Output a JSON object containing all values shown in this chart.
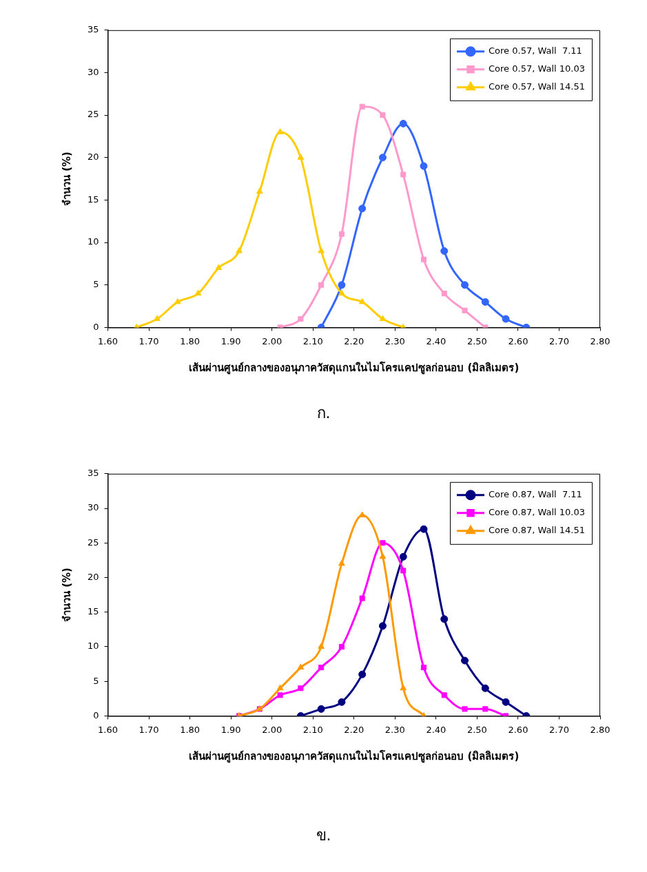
{
  "chart_data": [
    {
      "type": "line",
      "xlabel": "เส้นผ่านศูนย์กลางของอนุภาควัสดุแกนในไมโครแคปซูลก่อนอบ (มิลลิเมตร)",
      "ylabel": "จำนวน (%)",
      "xlim": [
        1.6,
        2.8
      ],
      "xticks": [
        {
          "value": 1.6,
          "label": "1.60"
        },
        {
          "value": 1.7,
          "label": "1.70"
        },
        {
          "value": 1.8,
          "label": "1.80"
        },
        {
          "value": 1.9,
          "label": "1.90"
        },
        {
          "value": 2.0,
          "label": "2.00"
        },
        {
          "value": 2.1,
          "label": "2.10"
        },
        {
          "value": 2.2,
          "label": "2.20"
        },
        {
          "value": 2.3,
          "label": "2.30"
        },
        {
          "value": 2.4,
          "label": "2.40"
        },
        {
          "value": 2.5,
          "label": "2.50"
        },
        {
          "value": 2.6,
          "label": "2.60"
        },
        {
          "value": 2.7,
          "label": "2.70"
        },
        {
          "value": 2.8,
          "label": "2.80"
        }
      ],
      "ylim": [
        0,
        35
      ],
      "yticks": [
        0,
        5,
        10,
        15,
        20,
        25,
        30,
        35
      ],
      "legend": "top right",
      "annotations": [
        "ก."
      ],
      "series": [
        {
          "name": "Core 0.57, Wall  7.11",
          "color": "#3366ff",
          "marker": "circle",
          "x": [
            2.12,
            2.17,
            2.22,
            2.27,
            2.32,
            2.37,
            2.42,
            2.47,
            2.52,
            2.57,
            2.62
          ],
          "values": [
            0,
            5,
            14,
            20,
            24,
            19,
            9,
            5,
            3,
            1,
            0
          ]
        },
        {
          "name": "Core 0.57, Wall 10.03",
          "color": "#ff99cc",
          "marker": "square",
          "x": [
            2.02,
            2.07,
            2.12,
            2.17,
            2.22,
            2.27,
            2.32,
            2.37,
            2.42,
            2.47,
            2.52
          ],
          "values": [
            0,
            1,
            5,
            11,
            26,
            25,
            18,
            8,
            4,
            2,
            0
          ]
        },
        {
          "name": "Core 0.57, Wall 14.51",
          "color": "#ffcc00",
          "marker": "triangle",
          "x": [
            1.67,
            1.72,
            1.77,
            1.82,
            1.87,
            1.92,
            1.97,
            2.02,
            2.07,
            2.12,
            2.17,
            2.22,
            2.27,
            2.32
          ],
          "values": [
            0,
            1,
            3,
            4,
            7,
            9,
            16,
            23,
            20,
            9,
            4,
            3,
            1,
            0
          ]
        }
      ]
    },
    {
      "type": "line",
      "xlabel": "เส้นผ่านศูนย์กลางของอนุภาควัสดุแกนในไมโครแคปซูลก่อนอบ (มิลลิเมตร)",
      "ylabel": "จำนวน (%)",
      "xlim": [
        1.6,
        2.8
      ],
      "xticks": [
        {
          "value": 1.6,
          "label": "1.60"
        },
        {
          "value": 1.7,
          "label": "1.70"
        },
        {
          "value": 1.8,
          "label": "1.80"
        },
        {
          "value": 1.9,
          "label": "1.90"
        },
        {
          "value": 2.0,
          "label": "2.00"
        },
        {
          "value": 2.1,
          "label": "2.10"
        },
        {
          "value": 2.2,
          "label": "2.20"
        },
        {
          "value": 2.3,
          "label": "2.30"
        },
        {
          "value": 2.4,
          "label": "2.40"
        },
        {
          "value": 2.5,
          "label": "2.50"
        },
        {
          "value": 2.6,
          "label": "2.60"
        },
        {
          "value": 2.7,
          "label": "2.70"
        },
        {
          "value": 2.8,
          "label": "2.80"
        }
      ],
      "ylim": [
        0,
        35
      ],
      "yticks": [
        0,
        5,
        10,
        15,
        20,
        25,
        30,
        35
      ],
      "legend": "top right",
      "annotations": [
        "ข."
      ],
      "series": [
        {
          "name": "Core 0.87, Wall  7.11",
          "color": "#000080",
          "marker": "circle",
          "x": [
            2.07,
            2.12,
            2.17,
            2.22,
            2.27,
            2.32,
            2.37,
            2.42,
            2.47,
            2.52,
            2.57,
            2.62
          ],
          "values": [
            0,
            1,
            2,
            6,
            13,
            23,
            27,
            14,
            8,
            4,
            2,
            0
          ]
        },
        {
          "name": "Core 0.87, Wall 10.03",
          "color": "#ff00ff",
          "marker": "square",
          "x": [
            1.92,
            1.97,
            2.02,
            2.07,
            2.12,
            2.17,
            2.22,
            2.27,
            2.32,
            2.37,
            2.42,
            2.47,
            2.52,
            2.57
          ],
          "values": [
            0,
            1,
            3,
            4,
            7,
            10,
            17,
            25,
            21,
            7,
            3,
            1,
            1,
            0
          ]
        },
        {
          "name": "Core 0.87, Wall 14.51",
          "color": "#ff9900",
          "marker": "triangle",
          "x": [
            1.92,
            1.97,
            2.02,
            2.07,
            2.12,
            2.17,
            2.22,
            2.27,
            2.32,
            2.37
          ],
          "values": [
            0,
            1,
            4,
            7,
            10,
            22,
            29,
            23,
            4,
            0
          ]
        }
      ]
    }
  ]
}
